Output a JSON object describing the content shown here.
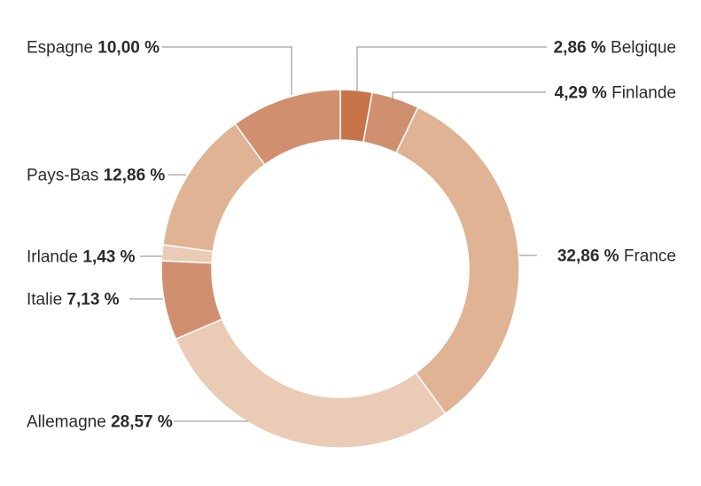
{
  "chart_data": {
    "type": "pie",
    "donut": true,
    "title": "",
    "slices": [
      {
        "label": "Belgique",
        "value": 2.86,
        "display": "2,86 %",
        "color": "#c87449",
        "side": "right"
      },
      {
        "label": "Finlande",
        "value": 4.29,
        "display": "4,29 %",
        "color": "#d09070",
        "side": "right"
      },
      {
        "label": "France",
        "value": 32.86,
        "display": "32,86 %",
        "color": "#e0b395",
        "side": "right"
      },
      {
        "label": "Allemagne",
        "value": 28.57,
        "display": "28,57 %",
        "color": "#eacbb5",
        "side": "left"
      },
      {
        "label": "Italie",
        "value": 7.13,
        "display": "7,13 %",
        "color": "#d09070",
        "side": "left"
      },
      {
        "label": "Irlande",
        "value": 1.43,
        "display": "1,43 %",
        "color": "#eacbb5",
        "side": "left"
      },
      {
        "label": "Pays-Bas",
        "value": 12.86,
        "display": "12,86 %",
        "color": "#e0b395",
        "side": "left"
      },
      {
        "label": "Espagne",
        "value": 10.0,
        "display": "10,00 %",
        "color": "#d09070",
        "side": "left"
      }
    ]
  }
}
